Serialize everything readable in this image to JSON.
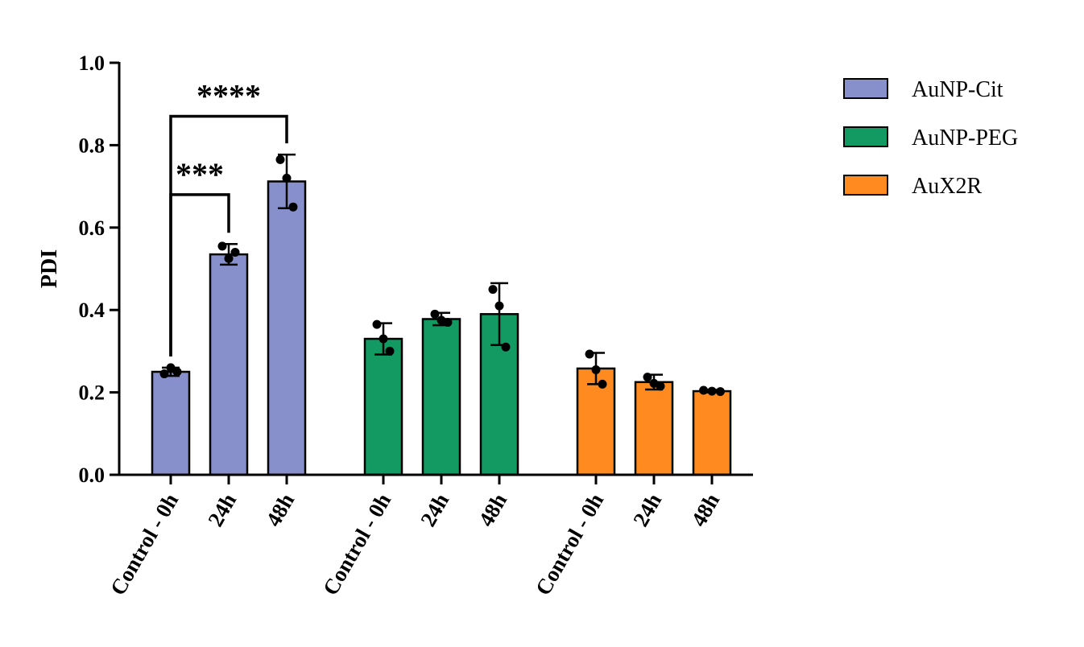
{
  "chart_data": {
    "type": "bar",
    "title": "",
    "xlabel": "",
    "ylabel": "PDI",
    "ylim": [
      0,
      1.0
    ],
    "yticks": [
      "0.0",
      "0.2",
      "0.4",
      "0.6",
      "0.8",
      "1.0"
    ],
    "grid": false,
    "legend_position": "top-right",
    "groups": [
      {
        "name": "AuNP-Cit",
        "color": "#8890CC",
        "categories": [
          "Control - 0h",
          "24h",
          "48h"
        ],
        "values": [
          0.25,
          0.535,
          0.712
        ],
        "error": [
          0.01,
          0.025,
          0.065
        ],
        "points": [
          [
            0.245,
            0.26,
            0.25
          ],
          [
            0.555,
            0.525,
            0.54
          ],
          [
            0.765,
            0.72,
            0.65
          ]
        ]
      },
      {
        "name": "AuNP-PEG",
        "color": "#139A62",
        "categories": [
          "Control - 0h",
          "24h",
          "48h"
        ],
        "values": [
          0.33,
          0.378,
          0.39
        ],
        "error": [
          0.038,
          0.015,
          0.075
        ],
        "points": [
          [
            0.365,
            0.33,
            0.3
          ],
          [
            0.39,
            0.375,
            0.37
          ],
          [
            0.45,
            0.41,
            0.31
          ]
        ]
      },
      {
        "name": "AuX2R",
        "color": "#FF8A1F",
        "categories": [
          "Control - 0h",
          "24h",
          "48h"
        ],
        "values": [
          0.258,
          0.225,
          0.203
        ],
        "error": [
          0.038,
          0.018,
          0.003
        ],
        "points": [
          [
            0.293,
            0.255,
            0.22
          ],
          [
            0.237,
            0.222,
            0.215
          ],
          [
            0.205,
            0.203,
            0.202
          ]
        ]
      }
    ],
    "significance": [
      {
        "label": "****",
        "from_group": 0,
        "from_bar": 0,
        "to_group": 0,
        "to_bar": 2,
        "y": 0.87
      },
      {
        "label": "***",
        "from_group": 0,
        "from_bar": 0,
        "to_group": 0,
        "to_bar": 1,
        "y": 0.68
      }
    ]
  }
}
